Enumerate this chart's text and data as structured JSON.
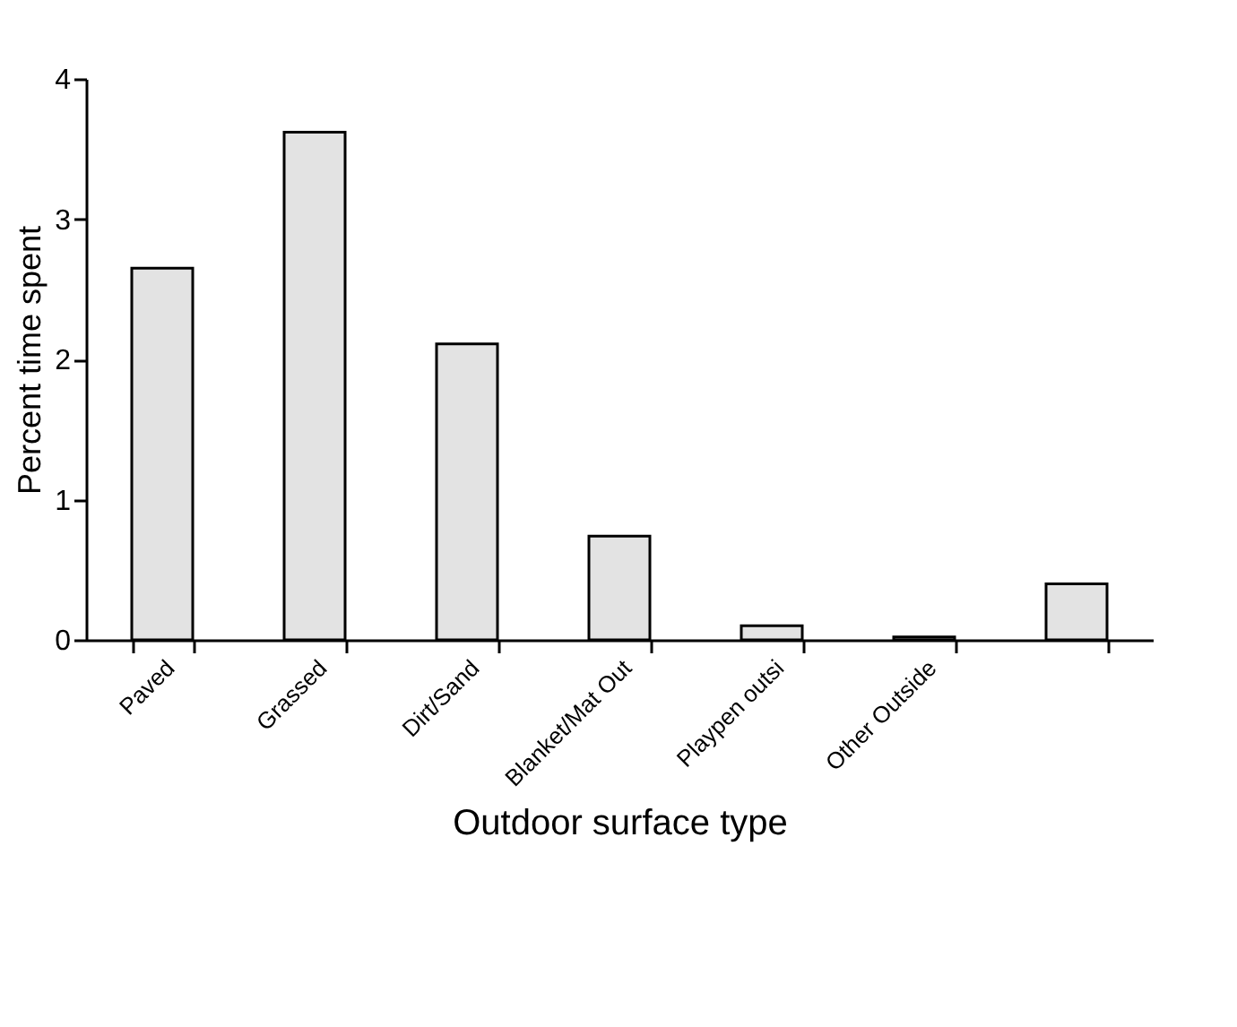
{
  "chart_data": {
    "type": "bar",
    "xlabel": "Outdoor surface type",
    "ylabel": "Percent time spent",
    "categories": [
      "Paved",
      "Grassed",
      "Dirt/Sand",
      "Blanket/Mat Out",
      "Playpen outsi",
      "Other Outside",
      null
    ],
    "values": [
      2.65,
      3.62,
      2.11,
      0.74,
      0.1,
      0.02,
      0.4
    ],
    "color": "#e3e3e3",
    "ylim": [
      0,
      4
    ],
    "yticks": [
      0,
      1,
      2,
      3,
      4
    ],
    "grid": false
  }
}
